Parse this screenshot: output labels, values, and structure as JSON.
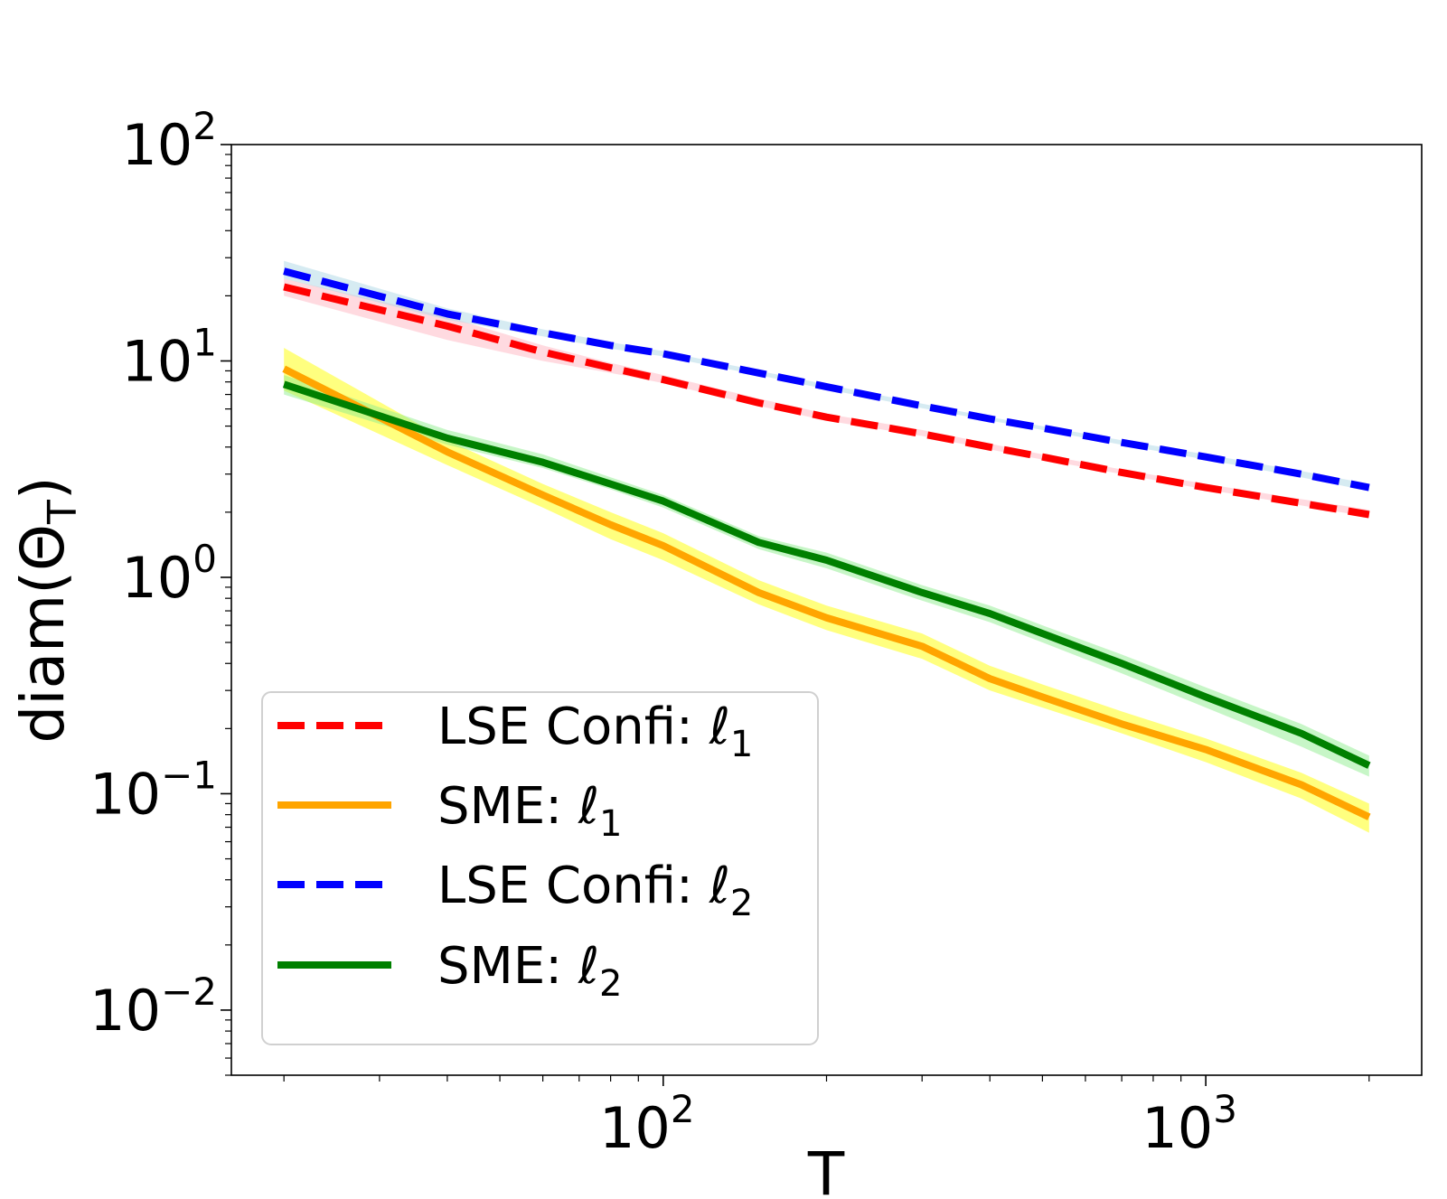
{
  "chart_data": {
    "type": "line",
    "xscale": "log",
    "yscale": "log",
    "xlabel": "T",
    "ylabel": "diam(Θ",
    "ylabel_subscript": "T",
    "ylabel_close": ")",
    "xlim": [
      16,
      2500
    ],
    "ylim": [
      0.005,
      100
    ],
    "x_ticks": [
      {
        "value": 100,
        "base": "10",
        "exp": "2"
      },
      {
        "value": 1000,
        "base": "10",
        "exp": "3"
      }
    ],
    "y_ticks": [
      {
        "value": 0.01,
        "base": "10",
        "exp": "−2"
      },
      {
        "value": 0.1,
        "base": "10",
        "exp": "−1"
      },
      {
        "value": 1,
        "base": "10",
        "exp": "0"
      },
      {
        "value": 10,
        "base": "10",
        "exp": "1"
      },
      {
        "value": 100,
        "base": "10",
        "exp": "2"
      }
    ],
    "x": [
      20,
      40,
      60,
      80,
      100,
      150,
      200,
      300,
      400,
      500,
      700,
      1000,
      1500,
      2000
    ],
    "series": [
      {
        "name": "LSE Confi: ℓ1",
        "label_text": "LSE Confi: ℓ",
        "label_sub": "1",
        "color": "#ff0000",
        "band_color": "#ffb6c1",
        "dashed": true,
        "values": [
          22,
          14.5,
          11,
          9.3,
          8.2,
          6.4,
          5.5,
          4.6,
          4.0,
          3.6,
          3.05,
          2.6,
          2.2,
          1.95
        ],
        "lower": [
          20,
          12.5,
          10,
          8.8,
          7.9,
          6.2,
          5.3,
          4.5,
          3.9,
          3.5,
          3.0,
          2.55,
          2.15,
          1.9
        ],
        "upper": [
          24,
          16,
          11.8,
          9.8,
          8.6,
          6.7,
          5.7,
          4.8,
          4.15,
          3.7,
          3.15,
          2.7,
          2.3,
          2.05
        ]
      },
      {
        "name": "SME: ℓ1",
        "label_text": "SME: ℓ",
        "label_sub": "1",
        "color": "#ffa500",
        "band_color": "#ffff00",
        "dashed": false,
        "values": [
          9.2,
          3.8,
          2.4,
          1.75,
          1.4,
          0.85,
          0.65,
          0.48,
          0.34,
          0.28,
          0.21,
          0.16,
          0.11,
          0.078
        ],
        "lower": [
          7.3,
          3.3,
          2.1,
          1.5,
          1.2,
          0.75,
          0.57,
          0.42,
          0.3,
          0.25,
          0.19,
          0.14,
          0.095,
          0.066
        ],
        "upper": [
          11.5,
          4.3,
          2.7,
          2.0,
          1.6,
          0.97,
          0.74,
          0.55,
          0.39,
          0.32,
          0.24,
          0.18,
          0.125,
          0.09
        ]
      },
      {
        "name": "LSE Confi: ℓ2",
        "label_text": "LSE Confi: ℓ",
        "label_sub": "2",
        "color": "#0000ff",
        "band_color": "#add8e6",
        "dashed": true,
        "values": [
          26,
          16.5,
          13.5,
          11.8,
          10.8,
          8.8,
          7.6,
          6.2,
          5.4,
          4.9,
          4.2,
          3.6,
          3.0,
          2.6
        ],
        "lower": [
          24,
          15.5,
          13,
          11.4,
          10.5,
          8.6,
          7.4,
          6.05,
          5.3,
          4.8,
          4.1,
          3.5,
          2.9,
          2.5
        ],
        "upper": [
          29,
          17.5,
          14,
          12.2,
          11.1,
          9.0,
          7.8,
          6.35,
          5.5,
          5.0,
          4.3,
          3.7,
          3.1,
          2.7
        ]
      },
      {
        "name": "SME: ℓ2",
        "label_text": "SME: ℓ",
        "label_sub": "2",
        "color": "#008000",
        "band_color": "#90ee90",
        "dashed": false,
        "values": [
          7.8,
          4.4,
          3.4,
          2.7,
          2.25,
          1.45,
          1.2,
          0.85,
          0.68,
          0.55,
          0.4,
          0.28,
          0.19,
          0.135
        ],
        "lower": [
          7.0,
          4.1,
          3.2,
          2.55,
          2.1,
          1.35,
          1.1,
          0.78,
          0.62,
          0.5,
          0.36,
          0.25,
          0.165,
          0.12
        ],
        "upper": [
          8.6,
          4.8,
          3.7,
          2.9,
          2.4,
          1.55,
          1.3,
          0.92,
          0.74,
          0.6,
          0.44,
          0.31,
          0.21,
          0.15
        ]
      }
    ],
    "legend_position": "lower-left"
  }
}
